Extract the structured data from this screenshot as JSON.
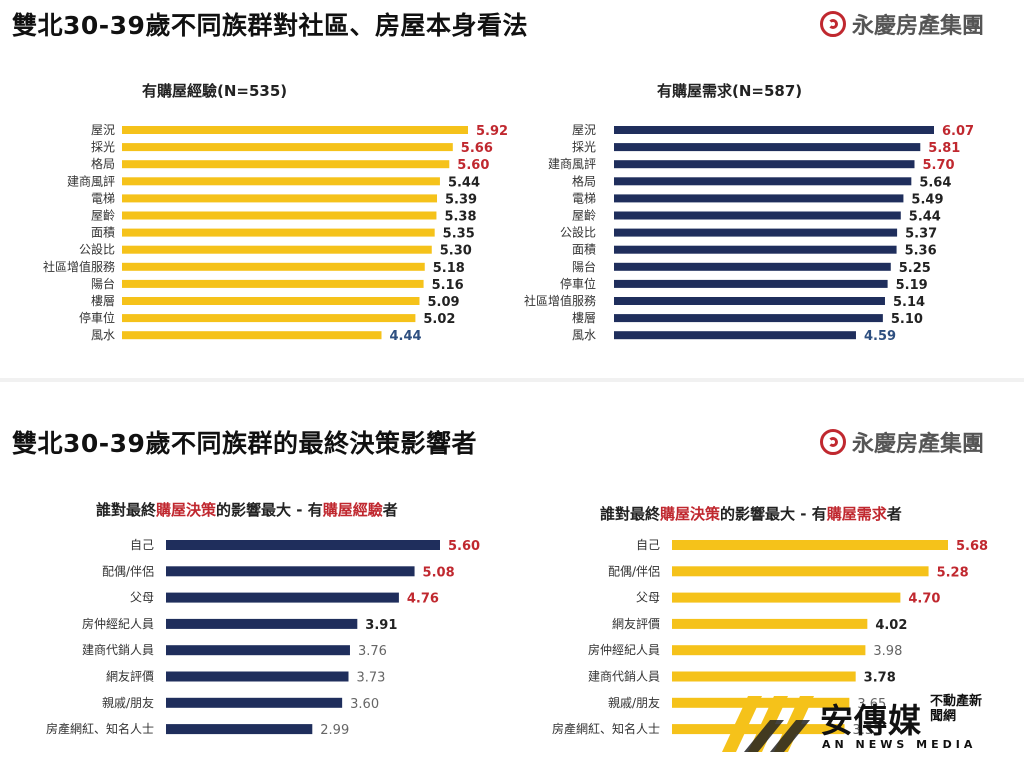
{
  "top": {
    "headline": "雙北30-39歲不同族群對社區、房屋本身看法",
    "logo": "永慶房產集團"
  },
  "bottom": {
    "headline": "雙北30-39歲不同族群的最終決策影響者",
    "logo": "永慶房產集團"
  },
  "watermark": {
    "brand": "安傳媒",
    "side": "不動產新聞網",
    "sub": "AN NEWS MEDIA"
  },
  "colors": {
    "yellow": "#f5c21a",
    "navy": "#1f2e5c",
    "red": "#c0282f",
    "blue": "#2e4f80",
    "dark": "#222222",
    "grey": "#666666"
  },
  "chart_data": [
    {
      "id": "c1",
      "type": "bar",
      "orientation": "horizontal",
      "title": "有購屋經驗(N=535)",
      "title_parts": [
        {
          "text": "有購屋經驗(N=535)",
          "highlight": false
        }
      ],
      "categories": [
        "屋況",
        "採光",
        "格局",
        "建商風評",
        "電梯",
        "屋齡",
        "面積",
        "公設比",
        "社區增值服務",
        "陽台",
        "樓層",
        "停車位",
        "風水"
      ],
      "values": [
        5.92,
        5.66,
        5.6,
        5.44,
        5.39,
        5.38,
        5.35,
        5.3,
        5.18,
        5.16,
        5.09,
        5.02,
        4.44
      ],
      "labels": [
        "5.92",
        "5.66",
        "5.60",
        "5.44",
        "5.39",
        "5.38",
        "5.35",
        "5.30",
        "5.18",
        "5.16",
        "5.09",
        "5.02",
        "4.44"
      ],
      "label_styles": [
        "red",
        "red",
        "red",
        "dark",
        "dark",
        "dark",
        "dark",
        "dark",
        "dark",
        "dark",
        "dark",
        "dark",
        "blue"
      ],
      "bar_color": "yellow"
    },
    {
      "id": "c2",
      "type": "bar",
      "orientation": "horizontal",
      "title": "有購屋需求(N=587)",
      "title_parts": [
        {
          "text": "有購屋需求(N=587)",
          "highlight": false
        }
      ],
      "categories": [
        "屋況",
        "採光",
        "建商風評",
        "格局",
        "電梯",
        "屋齡",
        "公設比",
        "面積",
        "陽台",
        "停車位",
        "社區增值服務",
        "樓層",
        "風水"
      ],
      "values": [
        6.07,
        5.81,
        5.7,
        5.64,
        5.49,
        5.44,
        5.37,
        5.36,
        5.25,
        5.19,
        5.14,
        5.1,
        4.59
      ],
      "labels": [
        "6.07",
        "5.81",
        "5.70",
        "5.64",
        "5.49",
        "5.44",
        "5.37",
        "5.36",
        "5.25",
        "5.19",
        "5.14",
        "5.10",
        "4.59"
      ],
      "label_styles": [
        "red",
        "red",
        "red",
        "dark",
        "dark",
        "dark",
        "dark",
        "dark",
        "dark",
        "dark",
        "dark",
        "dark",
        "blue"
      ],
      "bar_color": "navy"
    },
    {
      "id": "c3",
      "type": "bar",
      "orientation": "horizontal",
      "title": "誰對最終購屋決策的影響最大 - 有購屋經驗者",
      "title_parts": [
        {
          "text": "誰對最終",
          "highlight": false
        },
        {
          "text": "購屋決策",
          "highlight": true
        },
        {
          "text": "的影響最大 - 有",
          "highlight": false
        },
        {
          "text": "購屋經驗",
          "highlight": true
        },
        {
          "text": "者",
          "highlight": false
        }
      ],
      "categories": [
        "自己",
        "配偶/伴侶",
        "父母",
        "房仲經紀人員",
        "建商代銷人員",
        "網友評價",
        "親戚/朋友",
        "房產網紅、知名人士"
      ],
      "values": [
        5.6,
        5.08,
        4.76,
        3.91,
        3.76,
        3.73,
        3.6,
        2.99
      ],
      "labels": [
        "5.60",
        "5.08",
        "4.76",
        "3.91",
        "3.76",
        "3.73",
        "3.60",
        "2.99"
      ],
      "label_styles": [
        "red",
        "red",
        "red",
        "darkbold",
        "grey",
        "grey",
        "grey",
        "grey"
      ],
      "bar_color": "navy"
    },
    {
      "id": "c4",
      "type": "bar",
      "orientation": "horizontal",
      "title": "誰對最終購屋決策的影響最大 - 有購屋需求者",
      "title_parts": [
        {
          "text": "誰對最終",
          "highlight": false
        },
        {
          "text": "購屋決策",
          "highlight": true
        },
        {
          "text": "的影響最大 - 有",
          "highlight": false
        },
        {
          "text": "購屋需求",
          "highlight": true
        },
        {
          "text": "者",
          "highlight": false
        }
      ],
      "categories": [
        "自己",
        "配偶/伴侶",
        "父母",
        "網友評價",
        "房仲經紀人員",
        "建商代銷人員",
        "親戚/朋友",
        "房產網紅、知名人士"
      ],
      "values": [
        5.68,
        5.28,
        4.7,
        4.02,
        3.98,
        3.78,
        3.65,
        3.55
      ],
      "labels": [
        "5.68",
        "5.28",
        "4.70",
        "4.02",
        "3.98",
        "3.78",
        "3.65",
        "3.55"
      ],
      "label_styles": [
        "red",
        "red",
        "red",
        "darkbold",
        "grey",
        "dark",
        "grey",
        "grey"
      ],
      "bar_color": "yellow"
    }
  ]
}
